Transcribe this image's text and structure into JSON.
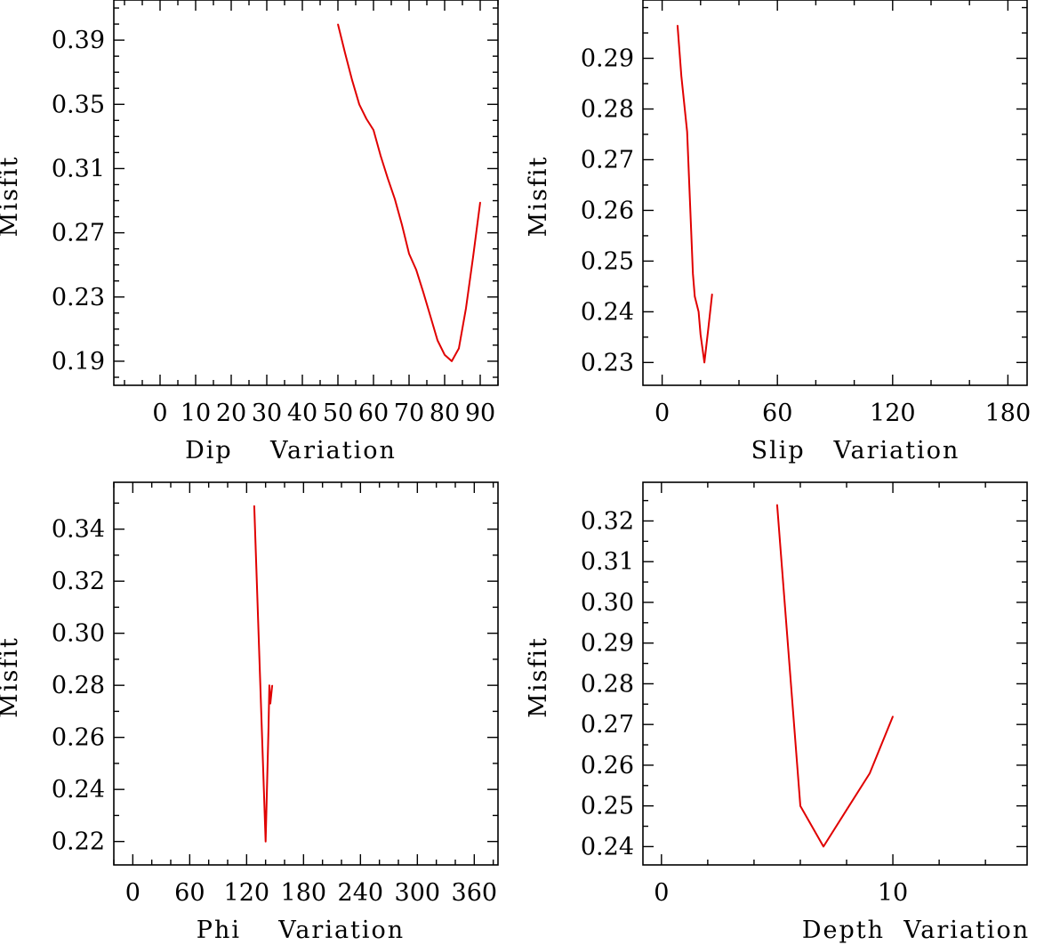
{
  "chart_data": [
    {
      "type": "line",
      "title": "",
      "xlabel": "Dip    Variation",
      "ylabel": "Misfit",
      "xlim": [
        -13,
        95
      ],
      "ylim": [
        0.175,
        0.415
      ],
      "xticks": [
        0,
        10,
        20,
        30,
        40,
        50,
        60,
        70,
        80,
        90
      ],
      "yticks": [
        0.19,
        0.23,
        0.27,
        0.31,
        0.35,
        0.39
      ],
      "ytick_labels": [
        "0.19",
        "0.23",
        "0.27",
        "0.31",
        "0.35",
        "0.39"
      ],
      "series": [
        {
          "name": "dip",
          "color": "#e00000",
          "x": [
            50,
            52,
            54,
            56,
            58,
            60,
            62,
            64,
            66,
            68,
            70,
            72,
            74,
            76,
            78,
            80,
            82,
            84,
            86,
            88,
            90
          ],
          "y": [
            0.4,
            0.382,
            0.365,
            0.35,
            0.341,
            0.334,
            0.318,
            0.304,
            0.291,
            0.275,
            0.257,
            0.247,
            0.233,
            0.218,
            0.203,
            0.194,
            0.19,
            0.198,
            0.223,
            0.255,
            0.289
          ]
        }
      ]
    },
    {
      "type": "line",
      "title": "",
      "xlabel": "Slip   Variation",
      "ylabel": "Misfit",
      "xlim": [
        -10,
        190
      ],
      "ylim": [
        0.2255,
        0.3015
      ],
      "xticks": [
        0,
        60,
        120,
        180
      ],
      "yticks": [
        0.23,
        0.24,
        0.25,
        0.26,
        0.27,
        0.28,
        0.29
      ],
      "ytick_labels": [
        "0.23",
        "0.24",
        "0.25",
        "0.26",
        "0.27",
        "0.28",
        "0.29"
      ],
      "series": [
        {
          "name": "slip",
          "color": "#e00000",
          "x": [
            8,
            10,
            13,
            16,
            17,
            19,
            20,
            22,
            24,
            26
          ],
          "y": [
            0.2965,
            0.2865,
            0.2755,
            0.2475,
            0.243,
            0.24,
            0.2355,
            0.23,
            0.2365,
            0.2435
          ]
        }
      ]
    },
    {
      "type": "line",
      "title": "",
      "xlabel": "Phi    Variation",
      "ylabel": "Misfit",
      "xlim": [
        -20,
        385
      ],
      "ylim": [
        0.211,
        0.358
      ],
      "xticks": [
        0,
        60,
        120,
        180,
        240,
        300,
        360
      ],
      "yticks": [
        0.22,
        0.24,
        0.26,
        0.28,
        0.3,
        0.32,
        0.34
      ],
      "ytick_labels": [
        "0.22",
        "0.24",
        "0.26",
        "0.28",
        "0.30",
        "0.32",
        "0.34"
      ],
      "series": [
        {
          "name": "phi",
          "color": "#e00000",
          "x": [
            128,
            140,
            143,
            144,
            145,
            147
          ],
          "y": [
            0.349,
            0.22,
            0.263,
            0.28,
            0.273,
            0.28
          ]
        }
      ]
    },
    {
      "type": "line",
      "title": "",
      "xlabel": "Depth  Variation",
      "ylabel": "Misfit",
      "xlim": [
        -0.8,
        15.8
      ],
      "ylim": [
        0.2355,
        0.3295
      ],
      "xticks": [
        0,
        10
      ],
      "yticks": [
        0.24,
        0.25,
        0.26,
        0.27,
        0.28,
        0.29,
        0.3,
        0.31,
        0.32
      ],
      "ytick_labels": [
        "0.24",
        "0.25",
        "0.26",
        "0.27",
        "0.28",
        "0.29",
        "0.30",
        "0.31",
        "0.32"
      ],
      "series": [
        {
          "name": "depth",
          "color": "#e00000",
          "x": [
            5,
            6,
            7,
            8,
            9,
            10
          ],
          "y": [
            0.324,
            0.25,
            0.24,
            0.249,
            0.258,
            0.272
          ]
        }
      ]
    }
  ]
}
